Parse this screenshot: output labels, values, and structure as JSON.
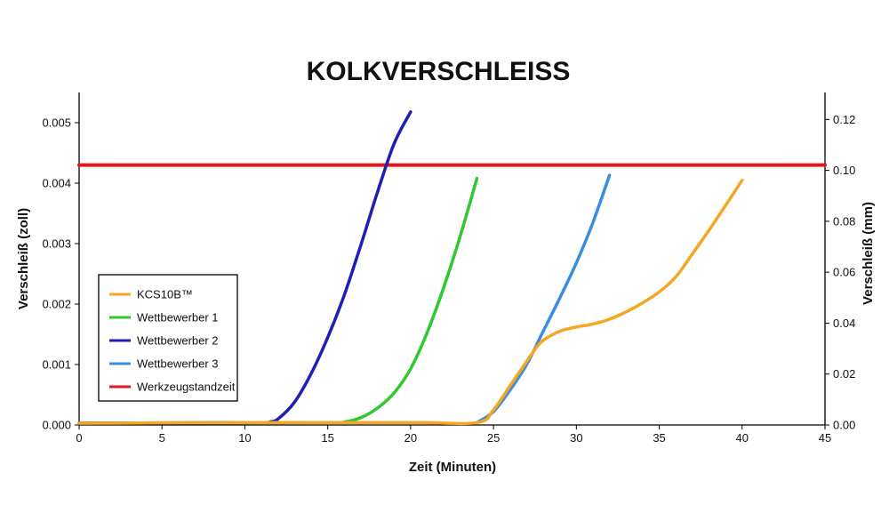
{
  "chart_data": {
    "type": "line",
    "title": "KOLKVERSCHLEISS",
    "xlabel": "Zeit (Minuten)",
    "ylabel": "Verschleiß (zoll)",
    "y2label": "Verschleiß (mm)",
    "xlim": [
      0,
      45
    ],
    "ylim": [
      0,
      0.0055
    ],
    "y2lim": [
      0,
      0.1306
    ],
    "xticks": [
      0,
      5,
      10,
      15,
      20,
      25,
      30,
      35,
      40,
      45
    ],
    "yticks": [
      "0.000",
      "0.001",
      "0.002",
      "0.003",
      "0.004",
      "0.005"
    ],
    "y2ticks": [
      "0.00",
      "0.02",
      "0.04",
      "0.06",
      "0.08",
      "0.10",
      "0.12"
    ],
    "grid": false,
    "legend_position": "lower-left",
    "series": [
      {
        "name": "KCS10B™",
        "color": "#f5a623",
        "x": [
          0,
          10,
          20,
          24,
          25,
          26,
          27,
          27.5,
          28,
          29,
          30,
          31,
          32,
          33,
          34,
          35,
          36,
          37,
          38,
          39,
          40
        ],
        "y": [
          3e-05,
          4e-05,
          4e-05,
          4e-05,
          0.00025,
          0.00065,
          0.00105,
          0.00125,
          0.0014,
          0.00155,
          0.00162,
          0.00167,
          0.00175,
          0.00187,
          0.00202,
          0.0022,
          0.00245,
          0.00283,
          0.00322,
          0.00363,
          0.00405
        ]
      },
      {
        "name": "Wettbewerber 1",
        "color": "#2ec92e",
        "x": [
          0,
          15,
          16,
          17,
          18,
          19,
          20,
          21,
          22,
          23,
          24
        ],
        "y": [
          3e-05,
          4e-05,
          5e-05,
          0.00012,
          0.00028,
          0.00053,
          0.00093,
          0.00153,
          0.00228,
          0.00313,
          0.00408
        ]
      },
      {
        "name": "Wettbewerber 2",
        "color": "#1f1fb4",
        "x": [
          0,
          11,
          11.5,
          12,
          13,
          14,
          15,
          16,
          17,
          18,
          19,
          20
        ],
        "y": [
          3e-05,
          4e-05,
          5e-05,
          0.0001,
          0.00038,
          0.00085,
          0.00145,
          0.00215,
          0.00298,
          0.00385,
          0.00465,
          0.00518
        ]
      },
      {
        "name": "Wettbewerber 3",
        "color": "#3b8de0",
        "x": [
          24,
          25,
          26,
          27,
          28,
          29,
          30,
          31,
          32
        ],
        "y": [
          4e-05,
          0.00022,
          0.00058,
          0.001,
          0.00155,
          0.0021,
          0.00268,
          0.00335,
          0.00413
        ]
      },
      {
        "name": "Werkzeugstandzeit",
        "color": "#e8141c",
        "x": [
          0,
          45
        ],
        "y": [
          0.0043,
          0.0043
        ]
      }
    ]
  }
}
